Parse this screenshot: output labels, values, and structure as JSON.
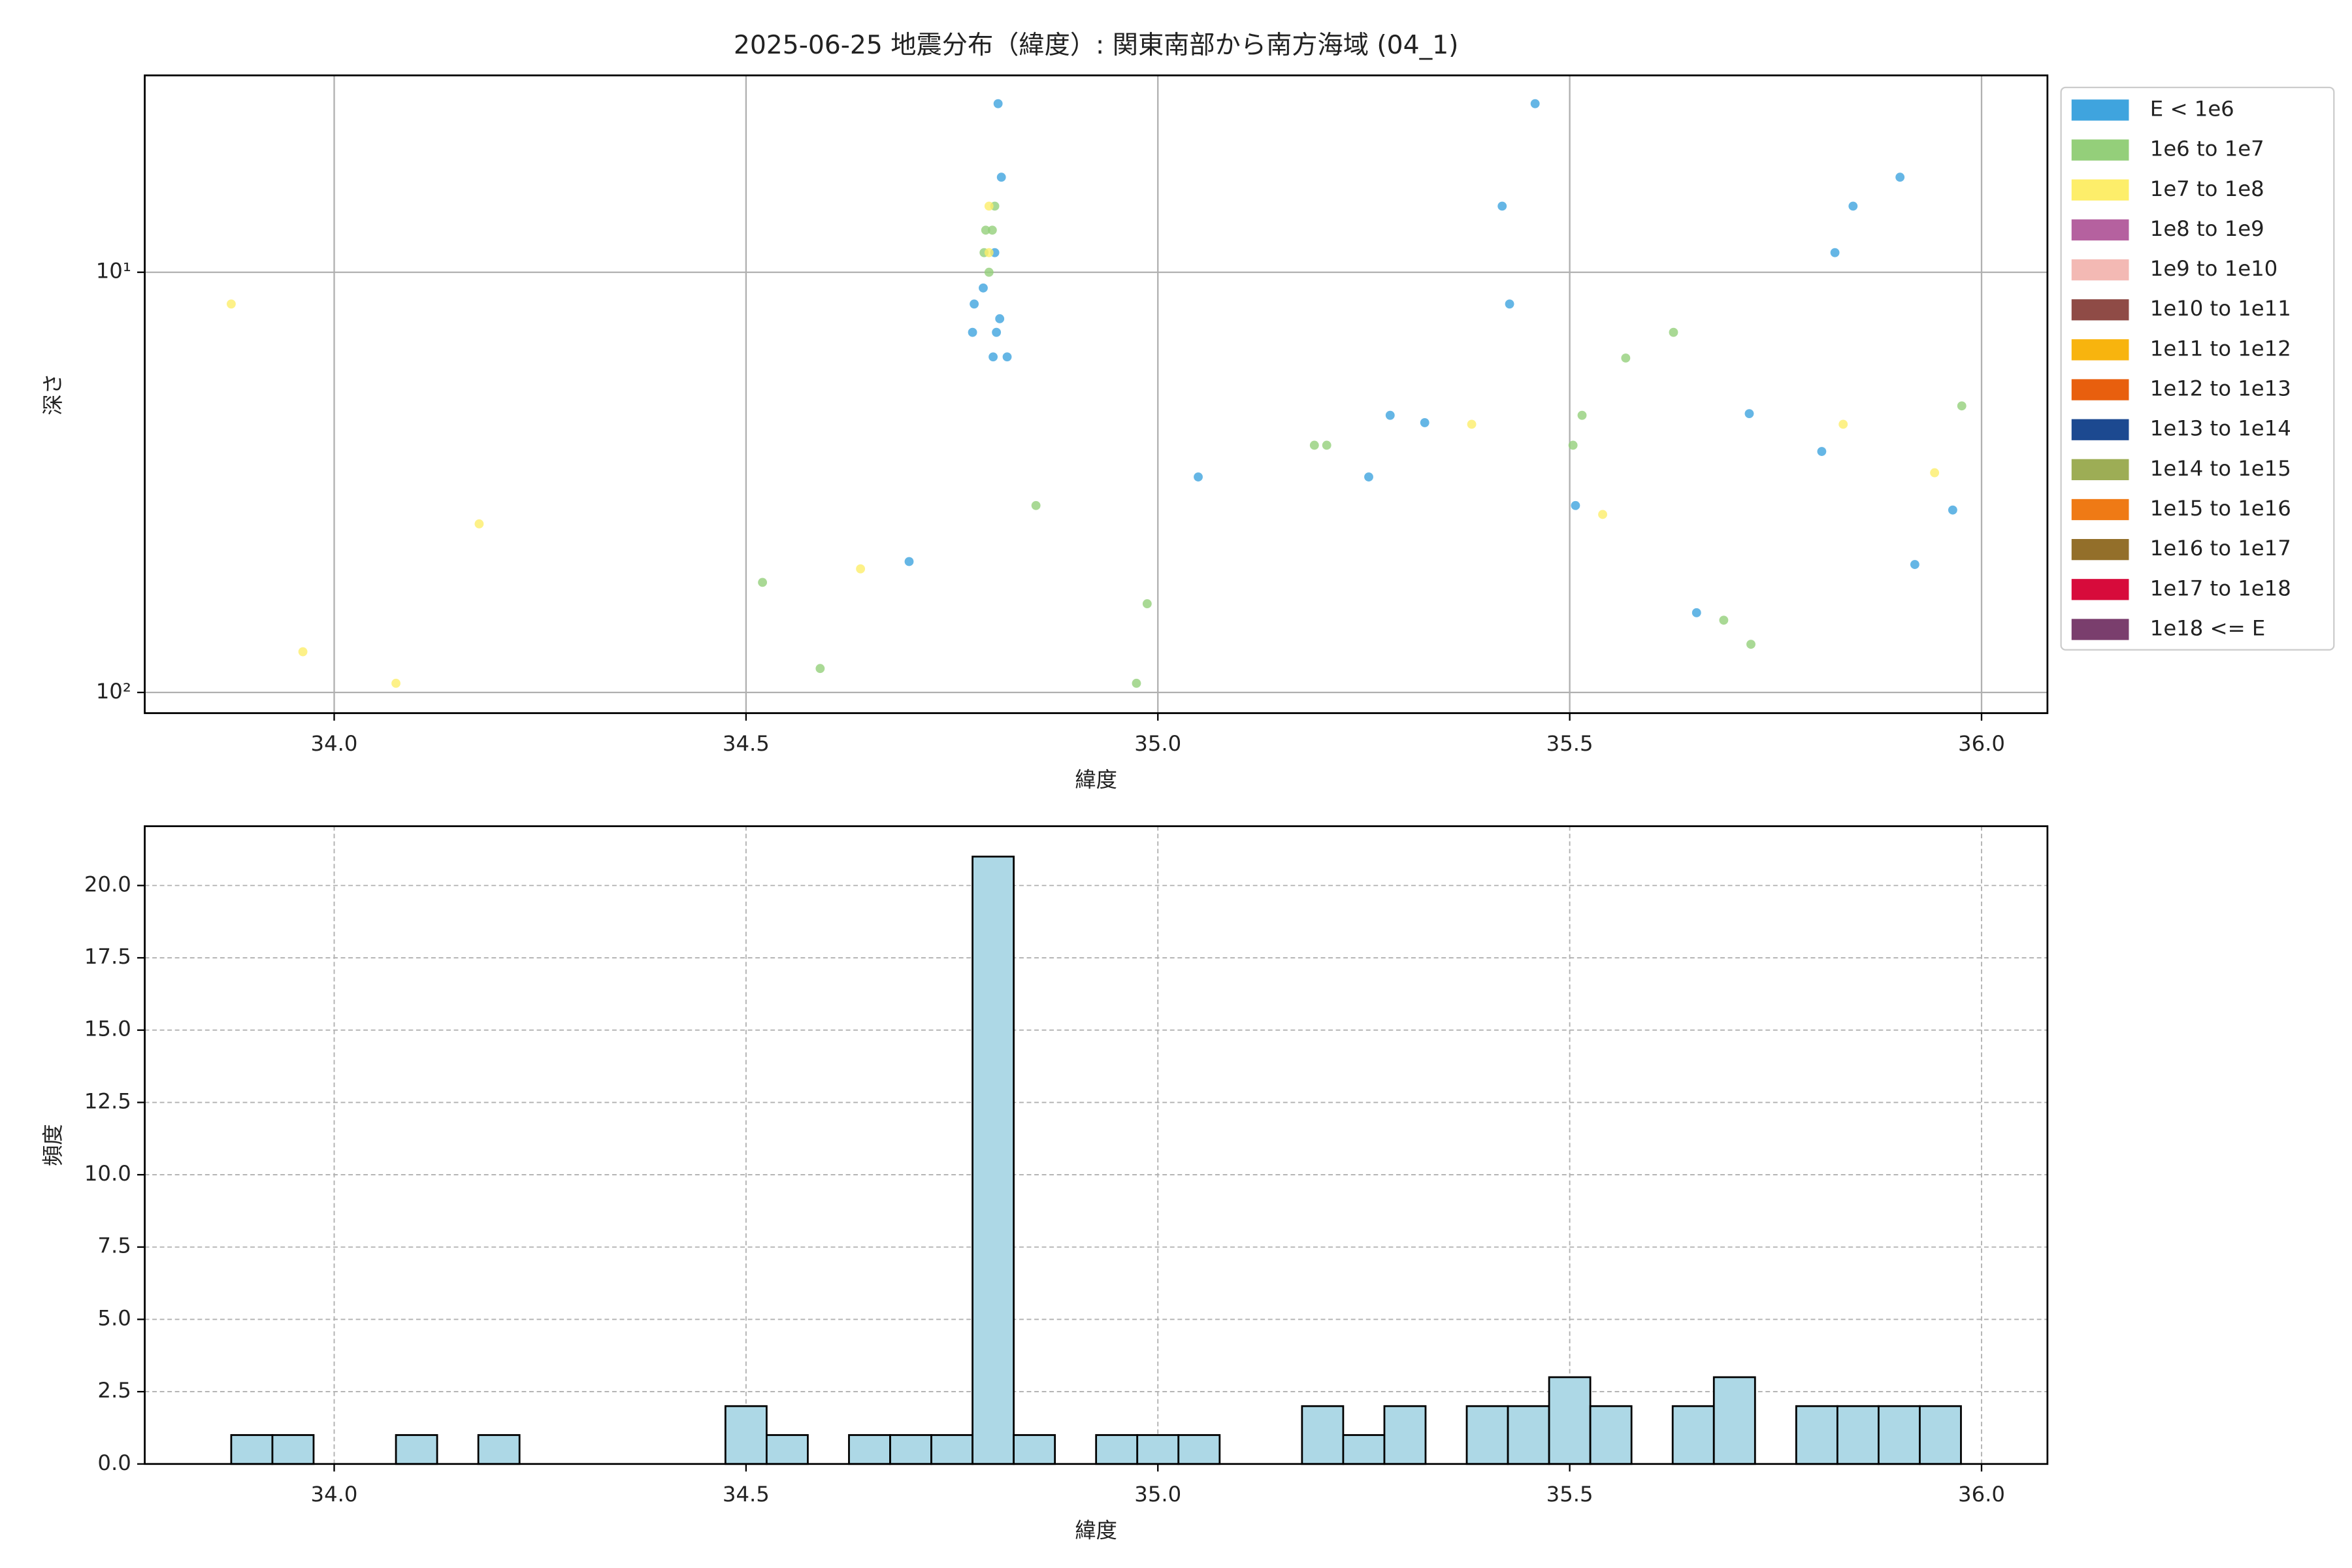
{
  "chart_data": [
    {
      "type": "scatter",
      "title": "2025-06-25 地震分布（緯度）: 関東南部から南方海域 (04_1)",
      "x_label": "緯度",
      "y_label": "深さ",
      "xlim": [
        33.77,
        36.08
      ],
      "xticks": [
        {
          "value": 34.0,
          "label": "34.0"
        },
        {
          "value": 34.5,
          "label": "34.5"
        },
        {
          "value": 35.0,
          "label": "35.0"
        },
        {
          "value": 35.5,
          "label": "35.5"
        },
        {
          "value": 36.0,
          "label": "36.0"
        }
      ],
      "ylim": [
        112,
        3.4
      ],
      "y_scale": "log",
      "yticks": [
        {
          "value": 10,
          "label": "10¹"
        },
        {
          "value": 100,
          "label": "10²"
        }
      ],
      "grid": true,
      "legend": "outside right",
      "series": [
        {
          "name": "E < 1e6",
          "color": "#3fa4de",
          "x": [
            34.806,
            34.81,
            34.802,
            34.788,
            34.777,
            34.808,
            34.775,
            34.804,
            34.8,
            34.817,
            34.698,
            35.049,
            35.282,
            35.324,
            35.256,
            35.418,
            35.427,
            35.458,
            35.507,
            35.654,
            35.718,
            35.806,
            35.822,
            35.844,
            35.901,
            35.919,
            35.965
          ],
          "values": [
            3.97,
            5.94,
            8.98,
            10.9,
            11.9,
            12.9,
            13.9,
            13.9,
            15.9,
            15.9,
            48.8,
            30.7,
            21.9,
            22.8,
            30.7,
            6.96,
            11.9,
            3.97,
            35.9,
            64.6,
            21.7,
            26.7,
            8.98,
            6.96,
            5.94,
            49.6,
            36.8
          ]
        },
        {
          "name": "1e6 to 1e7",
          "color": "#94cf7a",
          "x": [
            34.802,
            34.799,
            34.791,
            34.789,
            34.795,
            34.852,
            34.52,
            34.59,
            34.974,
            34.987,
            35.19,
            35.205,
            35.504,
            35.515,
            35.568,
            35.626,
            35.687,
            35.72,
            35.976
          ],
          "values": [
            6.96,
            7.94,
            7.94,
            8.98,
            10,
            35.9,
            54.7,
            87.7,
            95.1,
            61.5,
            25.8,
            25.8,
            25.8,
            21.9,
            16.0,
            13.9,
            67.3,
            76.8,
            20.8
          ]
        },
        {
          "name": "1e7 to 1e8",
          "color": "#fdee6a",
          "x": [
            33.875,
            33.962,
            34.075,
            34.176,
            34.639,
            34.795,
            34.795,
            35.381,
            35.54,
            35.832,
            35.943
          ],
          "values": [
            11.9,
            80.0,
            95.1,
            39.7,
            50.8,
            6.96,
            8.98,
            23.0,
            37.7,
            23.0,
            30.0
          ]
        },
        {
          "name": "1e8 to 1e9",
          "color": "#b5619f",
          "x": [],
          "values": []
        },
        {
          "name": "1e9 to 1e10",
          "color": "#f3b9b4",
          "x": [],
          "values": []
        },
        {
          "name": "1e10 to 1e11",
          "color": "#8f4b46",
          "x": [],
          "values": []
        },
        {
          "name": "1e11 to 1e12",
          "color": "#f8b40e",
          "x": [],
          "values": []
        },
        {
          "name": "1e12 to 1e13",
          "color": "#e85f0e",
          "x": [],
          "values": []
        },
        {
          "name": "1e13 to 1e14",
          "color": "#1c4990",
          "x": [],
          "values": []
        },
        {
          "name": "1e14 to 1e15",
          "color": "#9dad55",
          "x": [],
          "values": []
        },
        {
          "name": "1e15 to 1e16",
          "color": "#ef7a15",
          "x": [],
          "values": []
        },
        {
          "name": "1e16 to 1e17",
          "color": "#936f2a",
          "x": [],
          "values": []
        },
        {
          "name": "1e17 to 1e18",
          "color": "#d70b3b",
          "x": [],
          "values": []
        },
        {
          "name": "1e18 <= E",
          "color": "#7a3e6d",
          "x": [],
          "values": []
        }
      ]
    },
    {
      "type": "histogram",
      "x_label": "緯度",
      "y_label": "頻度",
      "color": "#add8e6",
      "edge_color": "#000000",
      "xlim": [
        33.77,
        36.08
      ],
      "xticks": [
        {
          "value": 34.0,
          "label": "34.0"
        },
        {
          "value": 34.5,
          "label": "34.5"
        },
        {
          "value": 35.0,
          "label": "35.0"
        },
        {
          "value": 35.5,
          "label": "35.5"
        },
        {
          "value": 36.0,
          "label": "36.0"
        }
      ],
      "ylim": [
        0,
        22.05
      ],
      "yticks": [
        {
          "value": 0,
          "label": "0.0"
        },
        {
          "value": 2.5,
          "label": "2.5"
        },
        {
          "value": 5,
          "label": "5.0"
        },
        {
          "value": 7.5,
          "label": "7.5"
        },
        {
          "value": 10,
          "label": "10.0"
        },
        {
          "value": 12.5,
          "label": "12.5"
        },
        {
          "value": 15,
          "label": "15.0"
        },
        {
          "value": 17.5,
          "label": "17.5"
        },
        {
          "value": 20,
          "label": "20.0"
        }
      ],
      "grid": true,
      "bins": [
        33.875,
        33.925,
        33.975,
        34.025,
        34.075,
        34.125,
        34.175,
        34.225,
        34.275,
        34.325,
        34.375,
        34.425,
        34.475,
        34.525,
        34.575,
        34.625,
        34.675,
        34.725,
        34.775,
        34.825,
        34.875,
        34.925,
        34.975,
        35.025,
        35.075,
        35.125,
        35.175,
        35.225,
        35.275,
        35.325,
        35.375,
        35.425,
        35.475,
        35.525,
        35.575,
        35.625,
        35.675,
        35.725,
        35.775,
        35.825,
        35.875,
        35.925,
        35.975
      ],
      "values": [
        1,
        1,
        0,
        0,
        1,
        0,
        1,
        0,
        0,
        0,
        0,
        0,
        2,
        1,
        0,
        1,
        1,
        1,
        21,
        1,
        0,
        1,
        1,
        1,
        0,
        0,
        2,
        1,
        2,
        0,
        2,
        2,
        3,
        2,
        0,
        2,
        3,
        0,
        2,
        2,
        2,
        2
      ]
    }
  ]
}
